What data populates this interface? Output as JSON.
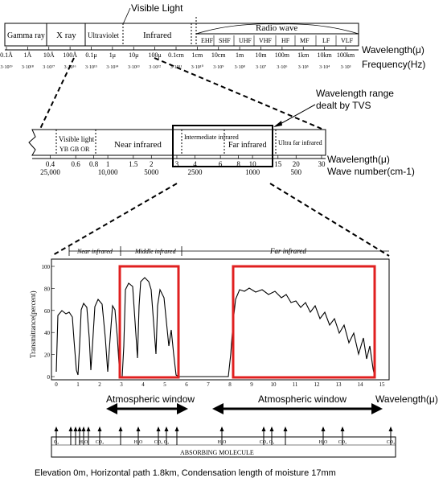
{
  "top_band": {
    "callout": "Visible Light",
    "regions": [
      "Gamma ray",
      "X ray",
      "Ultraviolet",
      "Infrared"
    ],
    "radio_title": "Radio wave",
    "radio_bands": [
      "EHF",
      "SHF",
      "UHF",
      "VHF",
      "HF",
      "MF",
      "LF",
      "VLF"
    ],
    "wavelength_ticks": [
      "0.1Å",
      "1Å",
      "10Å",
      "100Å",
      "0.1μ",
      "1μ",
      "10μ",
      "100μ",
      "0.1cm",
      "1cm",
      "10cm",
      "1m",
      "10m",
      "100m",
      "1km",
      "10km",
      "100km"
    ],
    "frequency_ticks": [
      "3·10¹⁹",
      "3·10¹⁸",
      "3·10¹⁷",
      "3·10¹⁶",
      "3·10¹⁵",
      "3·10¹⁴",
      "3·10¹³",
      "3·10¹²",
      "3·10¹¹",
      "3·10¹⁰",
      "3·10⁹",
      "3·10⁸",
      "3·10⁷",
      "3·10⁶",
      "3·10⁵",
      "3·10⁴",
      "3·10³"
    ],
    "wavelength_label": "Wavelength(μ)",
    "frequency_label": "Frequency(Hz)"
  },
  "middle_band": {
    "callout_line1": "Wavelength range",
    "callout_line2": "dealt by TVS",
    "visible_title": "Visible light",
    "visible_colors": "YB GB OR",
    "regions": [
      "Near infrared",
      "Intermediate infrared",
      "Far infrared",
      "Ultra far infrared"
    ],
    "wavelength_ticks": [
      "0.4",
      "0.6",
      "0.8",
      "1",
      "1.5",
      "2",
      "3",
      "4",
      "6",
      "8",
      "10",
      "15",
      "20",
      "30"
    ],
    "wavenumber_ticks": [
      "25,000",
      "10,000",
      "5000",
      "2500",
      "1000",
      "500"
    ],
    "wavelength_label": "Wavelength(μ)",
    "wavenumber_label": "Wave number(cm-1)"
  },
  "transmittance": {
    "region_labels": [
      "Near infrared",
      "Middle infrared",
      "Far infrared"
    ],
    "y_label": "Transmittance(percent)",
    "y_ticks": [
      "100",
      "80",
      "60",
      "40",
      "20",
      "0"
    ],
    "x_ticks": [
      "0",
      "1",
      "2",
      "3",
      "4",
      "5",
      "6",
      "7",
      "8",
      "9",
      "10",
      "11",
      "12",
      "13",
      "14",
      "15"
    ],
    "window_label": "Atmospheric window",
    "x_label": "Wavelength(μ)",
    "window_color": "#e02020"
  },
  "molecules": {
    "title": "ABSORBING MOLECULE",
    "labels": [
      "O₂",
      "H₂O",
      "CO₂",
      "H₂O",
      "CO₂",
      "O₂",
      "H₂O",
      "CO₂",
      "O₃",
      "H₂O",
      "CO₂",
      "CO₂"
    ]
  },
  "caption": "Elevation 0m,  Horizontal path 1.8km,  Condensation length of moisture 17mm"
}
